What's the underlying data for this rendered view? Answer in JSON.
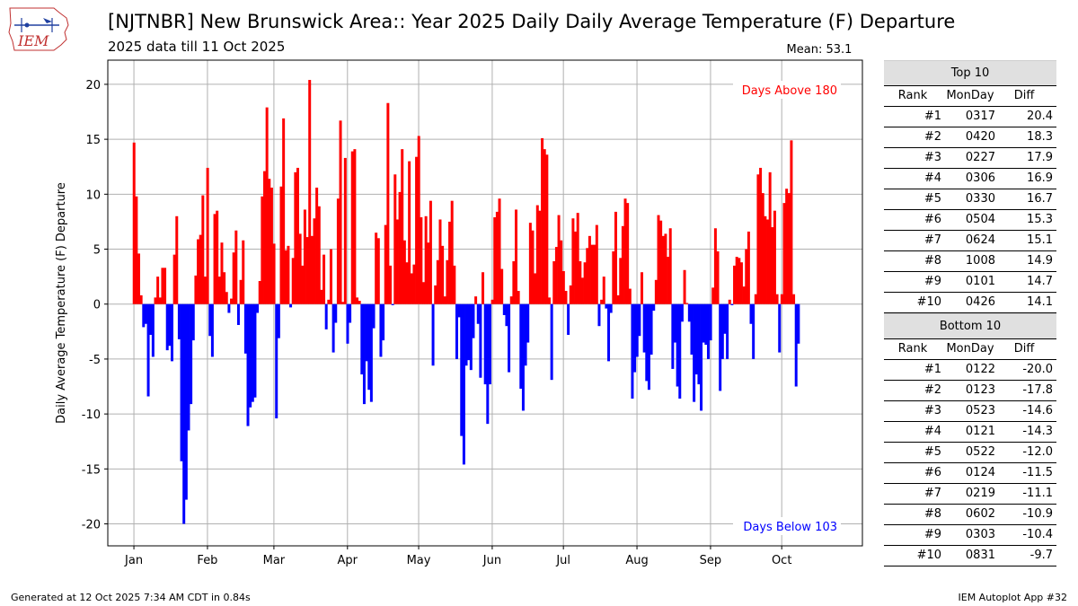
{
  "logo_text": "IEM",
  "title": "[NJTNBR] New Brunswick Area:: Year 2025 Daily Daily Average Temperature (F) Departure",
  "subtitle": "2025 data till 11 Oct 2025",
  "footer": {
    "generated": "Generated at 12 Oct 2025 7:34 AM CDT in 0.84s",
    "app": "IEM Autoplot App #32"
  },
  "colors": {
    "above": "#ff0000",
    "below": "#0000ff",
    "grid": "#b0b0b0",
    "table_header_bg": "#e0e0e0"
  },
  "chart_data": {
    "type": "bar",
    "ylabel": "Daily Average Temperature (F) Departure",
    "ylim": [
      -22,
      22.2
    ],
    "yticks": [
      -20,
      -15,
      -10,
      -5,
      0,
      5,
      10,
      15,
      20
    ],
    "xlim": [
      -11,
      307
    ],
    "xticks": [
      {
        "label": "Jan",
        "day": 0
      },
      {
        "label": "Feb",
        "day": 31
      },
      {
        "label": "Mar",
        "day": 59
      },
      {
        "label": "Apr",
        "day": 90
      },
      {
        "label": "May",
        "day": 120
      },
      {
        "label": "Jun",
        "day": 151
      },
      {
        "label": "Jul",
        "day": 181
      },
      {
        "label": "Aug",
        "day": 212
      },
      {
        "label": "Sep",
        "day": 243
      },
      {
        "label": "Oct",
        "day": 273
      }
    ],
    "grid": true,
    "mean_label": "Mean: 53.1",
    "above_label": "Days Above 180",
    "below_label": "Days Below 103",
    "start_date": "2025-01-01",
    "values": [
      14.7,
      9.8,
      4.6,
      0.8,
      -2.1,
      -1.8,
      -8.4,
      -2.8,
      -4.8,
      0.6,
      2.5,
      0.6,
      3.3,
      3.3,
      -4.2,
      -3.8,
      -5.2,
      4.5,
      8.0,
      -3.2,
      -14.3,
      -20.0,
      -17.8,
      -11.5,
      -9.1,
      -3.3,
      2.6,
      5.9,
      6.3,
      9.9,
      2.5,
      12.4,
      -2.9,
      -4.8,
      8.2,
      8.5,
      2.5,
      5.6,
      2.9,
      1.1,
      -0.8,
      0.5,
      4.7,
      6.7,
      -1.9,
      2.2,
      5.8,
      -4.5,
      -11.1,
      -9.4,
      -8.9,
      -8.5,
      -0.8,
      2.1,
      9.8,
      12.1,
      17.9,
      11.4,
      10.6,
      5.5,
      -10.4,
      -3.1,
      10.7,
      16.9,
      4.9,
      5.3,
      -0.3,
      4.2,
      12.0,
      12.4,
      6.4,
      3.5,
      8.6,
      6.1,
      20.4,
      6.2,
      7.8,
      10.6,
      8.9,
      1.3,
      4.5,
      -2.3,
      0.4,
      5.0,
      -4.4,
      -1.7,
      9.6,
      16.7,
      0.2,
      13.3,
      -3.6,
      -1.7,
      13.9,
      14.1,
      0.6,
      0.3,
      -6.4,
      -9.1,
      -5.2,
      -7.8,
      -8.9,
      -2.2,
      6.5,
      6.0,
      -4.8,
      -3.3,
      7.2,
      18.3,
      3.5,
      -0.1,
      11.8,
      7.7,
      10.2,
      14.1,
      5.8,
      3.8,
      13.0,
      2.8,
      3.6,
      13.4,
      15.3,
      7.9,
      2.0,
      8.0,
      5.6,
      9.4,
      -5.6,
      1.7,
      4.0,
      7.7,
      5.3,
      0.7,
      4.0,
      7.5,
      9.4,
      3.5,
      -5.0,
      -1.2,
      -12.0,
      -14.6,
      -5.6,
      -5.1,
      -6.0,
      -3.1,
      0.7,
      -1.8,
      -6.7,
      2.9,
      -7.3,
      -10.9,
      -7.3,
      0.4,
      7.9,
      8.4,
      9.6,
      3.2,
      -1.0,
      -2.0,
      -6.2,
      0.7,
      3.9,
      8.6,
      1.2,
      -7.7,
      -9.7,
      -5.6,
      -3.5,
      7.4,
      6.7,
      2.8,
      9.0,
      8.5,
      15.1,
      14.1,
      13.6,
      0.6,
      -6.9,
      3.9,
      5.2,
      8.1,
      5.8,
      3.0,
      1.2,
      -2.8,
      1.7,
      7.8,
      6.6,
      8.3,
      3.9,
      2.4,
      3.8,
      5.1,
      6.2,
      5.4,
      5.4,
      7.2,
      -2.0,
      0.4,
      2.5,
      -0.4,
      -5.2,
      -0.8,
      4.8,
      8.4,
      0.8,
      4.2,
      7.1,
      9.6,
      9.2,
      1.4,
      -8.6,
      -6.2,
      -4.8,
      -2.9,
      2.9,
      -4.4,
      -7.0,
      -7.8,
      -4.6,
      -0.6,
      2.2,
      8.1,
      7.6,
      6.2,
      6.4,
      4.3,
      6.9,
      -5.9,
      -3.5,
      -7.5,
      -8.6,
      -1.6,
      3.1,
      0.1,
      -1.6,
      -4.6,
      -8.9,
      -6.4,
      -7.3,
      -9.7,
      -3.5,
      -3.7,
      -5.0,
      -3.3,
      1.5,
      6.9,
      4.8,
      -7.9,
      -5.0,
      -2.7,
      -5.0,
      0.4,
      -0.1,
      3.5,
      4.3,
      4.2,
      3.8,
      1.6,
      5.0,
      6.6,
      -1.8,
      -5.0,
      0.9,
      11.8,
      12.4,
      10.1,
      8.0,
      7.7,
      12.0,
      7.0,
      8.5,
      0.9,
      -4.4,
      0.9,
      9.2,
      10.5,
      10.1,
      14.9,
      0.9,
      -7.5,
      -3.6
    ]
  },
  "table": {
    "top_title": "Top 10",
    "bottom_title": "Bottom 10",
    "col_headers": [
      "Rank",
      "MonDay",
      "Diff"
    ],
    "top": [
      [
        "#1",
        "0317",
        "20.4"
      ],
      [
        "#2",
        "0420",
        "18.3"
      ],
      [
        "#3",
        "0227",
        "17.9"
      ],
      [
        "#4",
        "0306",
        "16.9"
      ],
      [
        "#5",
        "0330",
        "16.7"
      ],
      [
        "#6",
        "0504",
        "15.3"
      ],
      [
        "#7",
        "0624",
        "15.1"
      ],
      [
        "#8",
        "1008",
        "14.9"
      ],
      [
        "#9",
        "0101",
        "14.7"
      ],
      [
        "#10",
        "0426",
        "14.1"
      ]
    ],
    "bottom": [
      [
        "#1",
        "0122",
        "-20.0"
      ],
      [
        "#2",
        "0123",
        "-17.8"
      ],
      [
        "#3",
        "0523",
        "-14.6"
      ],
      [
        "#4",
        "0121",
        "-14.3"
      ],
      [
        "#5",
        "0522",
        "-12.0"
      ],
      [
        "#6",
        "0124",
        "-11.5"
      ],
      [
        "#7",
        "0219",
        "-11.1"
      ],
      [
        "#8",
        "0602",
        "-10.9"
      ],
      [
        "#9",
        "0303",
        "-10.4"
      ],
      [
        "#10",
        "0831",
        "-9.7"
      ]
    ]
  }
}
